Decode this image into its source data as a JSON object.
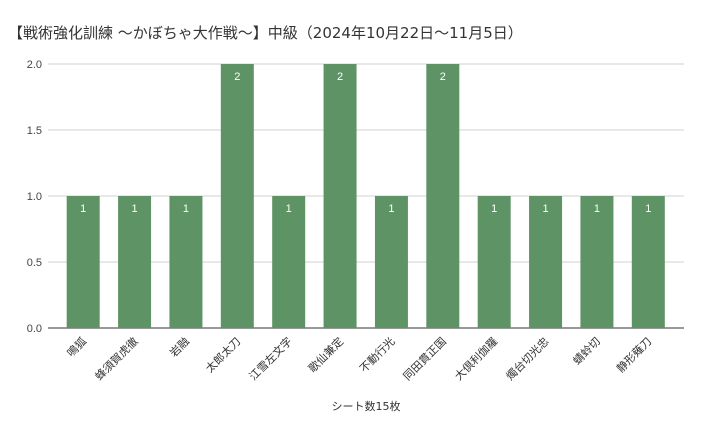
{
  "chart_data": {
    "type": "bar",
    "title": "【戦術強化訓練 〜かぼちゃ大作戦〜】中級（2024年10月22日〜11月5日）",
    "xlabel": "シート数15枚",
    "ylabel": "",
    "ylim": [
      0,
      2
    ],
    "yticks": [
      "0.0",
      "0.5",
      "1.0",
      "1.5",
      "2.0"
    ],
    "grid": true,
    "bar_color": "#5e9365",
    "categories": [
      "鳴狐",
      "蜂須賀虎徹",
      "岩融",
      "太郎太刀",
      "江雪左文字",
      "歌仙兼定",
      "不動行光",
      "同田貫正国",
      "大倶利伽羅",
      "燭台切光忠",
      "蜻蛉切",
      "静形薙刀"
    ],
    "values": [
      1,
      1,
      1,
      2,
      1,
      2,
      1,
      2,
      1,
      1,
      1,
      1
    ]
  }
}
